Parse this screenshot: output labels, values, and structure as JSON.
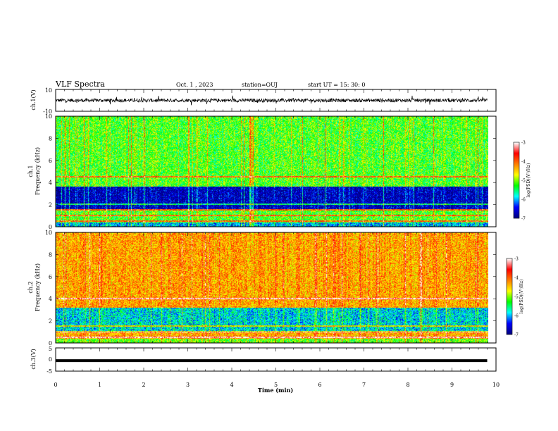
{
  "header": {
    "title": "VLF Spectra",
    "date": "Oct. 1 , 2023",
    "station": "station=OUJ",
    "start": "start UT =  15: 30: 0"
  },
  "chart_data": [
    {
      "type": "line",
      "name": "waveform-ch1",
      "ylabel": "ch.1(V)",
      "ytick_labels": [
        "10",
        "-10"
      ],
      "ylim": [
        -10,
        10
      ],
      "xlim": [
        0,
        10
      ],
      "trace": "noisy waveform around 0 V, amplitude about ±2 V with spikes to about ±4 V",
      "color": "#000000"
    },
    {
      "type": "heatmap",
      "name": "spectrogram-ch1",
      "channel_label": "ch.1",
      "ylabel": "Frequency (kHz)",
      "ylim": [
        0,
        10
      ],
      "yticks": [
        0,
        2,
        4,
        6,
        8,
        10
      ],
      "xlim": [
        0,
        9.8
      ],
      "colorbar": {
        "label": "log(PSD)(V²/Hz)",
        "ticks": [
          -3,
          -4,
          -5,
          -6,
          -7
        ],
        "range": [
          -7,
          -3
        ],
        "colors": [
          "#00007f",
          "#0000ff",
          "#00ffff",
          "#00ff00",
          "#ffff00",
          "#ff7f00",
          "#ff0000",
          "#ffffff"
        ]
      },
      "features": {
        "low_power_band_khz": [
          1.6,
          3.6
        ],
        "tone_bands_khz": [
          0.5,
          1.0,
          1.5,
          2.0,
          4.5
        ],
        "background_level": -5.2
      }
    },
    {
      "type": "heatmap",
      "name": "spectrogram-ch2",
      "channel_label": "ch.2",
      "ylabel": "Frequency (kHz)",
      "ylim": [
        0,
        10
      ],
      "yticks": [
        0,
        2,
        4,
        6,
        8,
        10
      ],
      "xlim": [
        0,
        9.8
      ],
      "colorbar": {
        "label": "log(PSD)(V²/Hz)",
        "ticks": [
          -3,
          -4,
          -5,
          -6,
          -7
        ],
        "range": [
          -7,
          -3
        ],
        "colors": [
          "#00007f",
          "#0000ff",
          "#00ffff",
          "#00ff00",
          "#ffff00",
          "#ff7f00",
          "#ff0000",
          "#ffffff"
        ]
      },
      "features": {
        "low_power_band_khz": [
          1.0,
          3.2
        ],
        "tone_bands_khz": [
          0.5,
          1.0,
          1.5,
          4.0
        ],
        "background_level": -4.3
      }
    },
    {
      "type": "line",
      "name": "waveform-ch3",
      "ylabel": "ch.3(V)",
      "ytick_labels": [
        "5",
        "0",
        "-5"
      ],
      "ylim": [
        -5,
        5
      ],
      "xlim": [
        0,
        10
      ],
      "trace": "flat line at about -0.5 V",
      "y_value": -0.5,
      "color": "#000000"
    }
  ],
  "xaxis": {
    "label": "Time  (min)",
    "ticks": [
      "0",
      "1",
      "2",
      "3",
      "4",
      "5",
      "6",
      "7",
      "8",
      "9",
      "10"
    ],
    "xlim": [
      0,
      10
    ]
  }
}
